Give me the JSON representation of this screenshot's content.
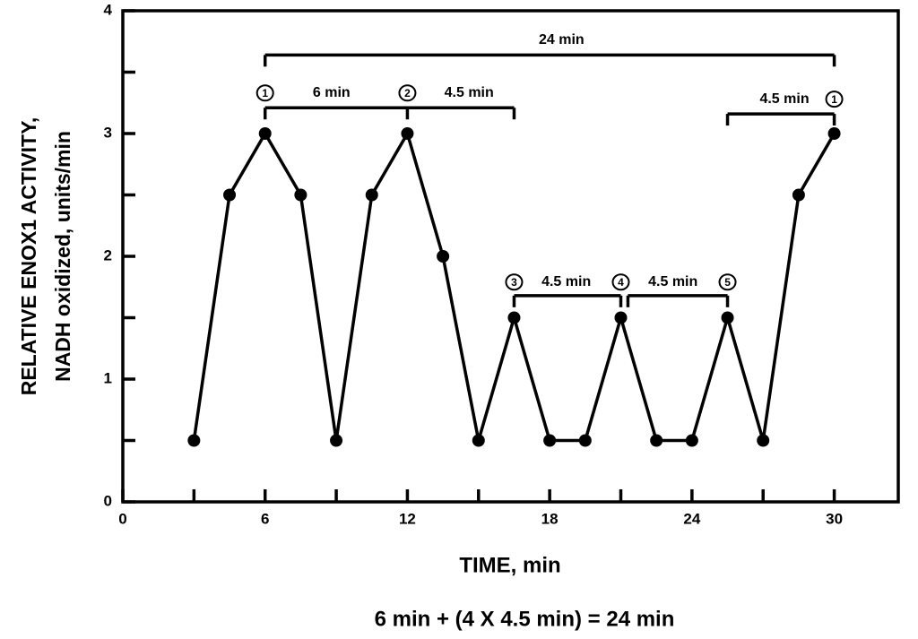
{
  "chart_data": {
    "type": "line",
    "y_label": [
      "RELATIVE ENOX1 ACTIVITY,",
      "NADH oxidized, units/min"
    ],
    "x_label": "TIME, min",
    "footer": "6 min + (4 X 4.5 min) = 24 min",
    "x": [
      3,
      4.5,
      6,
      7.5,
      9,
      10.5,
      12,
      13.5,
      15,
      16.5,
      18,
      19.5,
      21,
      22.5,
      24,
      25.5,
      27,
      28.5,
      30
    ],
    "series": [
      {
        "color": "#000000",
        "values": [
          0.5,
          2.5,
          3,
          2.5,
          0.5,
          2.5,
          3,
          2,
          0.5,
          1.5,
          0.5,
          0.5,
          1.5,
          0.5,
          0.5,
          1.5,
          0.5,
          2.5,
          3
        ]
      }
    ],
    "xlim": [
      0,
      32.7
    ],
    "ylim": [
      0,
      4
    ],
    "xticks": [
      0,
      6,
      12,
      18,
      24,
      30
    ],
    "yticks": [
      0,
      1,
      2,
      3,
      4
    ],
    "xminor_ticks": [
      3,
      9,
      15,
      21,
      27
    ],
    "yminor_ticks": [
      0.5,
      1.5,
      2.5,
      3.5
    ],
    "grid": false,
    "brackets": [
      {
        "x": [
          6,
          30
        ],
        "y": 3.64
      },
      {
        "x": [
          6,
          12,
          16.5
        ],
        "y": 3.21
      },
      {
        "x": [
          16.5,
          21
        ],
        "y": 1.68
      },
      {
        "x": [
          21.3,
          25.5
        ],
        "y": 1.68
      },
      {
        "x": [
          25.5,
          30
        ],
        "y": 3.16
      }
    ],
    "annotations": [
      {
        "text": "24 min",
        "x": 18.5,
        "y": 3.76
      },
      {
        "text": "6 min",
        "x": 8.8,
        "y": 3.33
      },
      {
        "text": "4.5 min",
        "x": 14.6,
        "y": 3.33
      },
      {
        "text": "4.5 min",
        "x": 18.7,
        "y": 1.79
      },
      {
        "text": "4.5 min",
        "x": 23.2,
        "y": 1.79
      },
      {
        "text": "4.5 min",
        "x": 27.9,
        "y": 3.28
      }
    ],
    "markers": [
      {
        "label": "1",
        "x": 6,
        "y": 3.33
      },
      {
        "label": "2",
        "x": 12,
        "y": 3.33
      },
      {
        "label": "3",
        "x": 16.5,
        "y": 1.79
      },
      {
        "label": "4",
        "x": 21,
        "y": 1.79
      },
      {
        "label": "5",
        "x": 25.5,
        "y": 1.79
      },
      {
        "label": "1",
        "x": 30,
        "y": 3.28
      }
    ]
  }
}
